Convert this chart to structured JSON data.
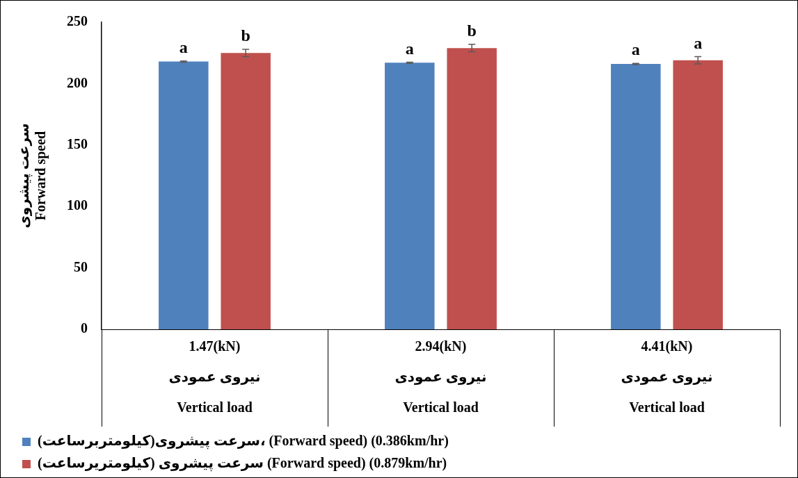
{
  "chart_data": {
    "type": "bar",
    "ylabel": "سرعت پیشروی\nForward speed",
    "categories": [
      "1.47(kN)\nنیروی عمودی\nVertical load",
      "2.94(kN)\nنیروی عمودی\nVertical load",
      "4.41(kN)\nنیروی عمودی\nVertical load"
    ],
    "series": [
      {
        "name": "سرعت پیشروی(کیلومتربرساعت)، (Forward speed) (0.386km/hr)",
        "color": "#4f81bd",
        "values": [
          218,
          217,
          216
        ],
        "errors": [
          0.5,
          0.5,
          0.5
        ],
        "value_labels": [
          "a",
          "a",
          "a"
        ]
      },
      {
        "name": "سرعت پیشروی (کیلومتریرساعت) (Forward speed) (0.879km/hr)",
        "color": "#c0504d",
        "values": [
          225,
          229,
          219
        ],
        "errors": [
          3,
          3,
          3
        ],
        "value_labels": [
          "b",
          "b",
          "a"
        ]
      }
    ],
    "ylim": [
      0,
      250
    ],
    "yticks": [
      0,
      50,
      100,
      150,
      200,
      250
    ],
    "grid": false,
    "legend": "bottom left"
  }
}
